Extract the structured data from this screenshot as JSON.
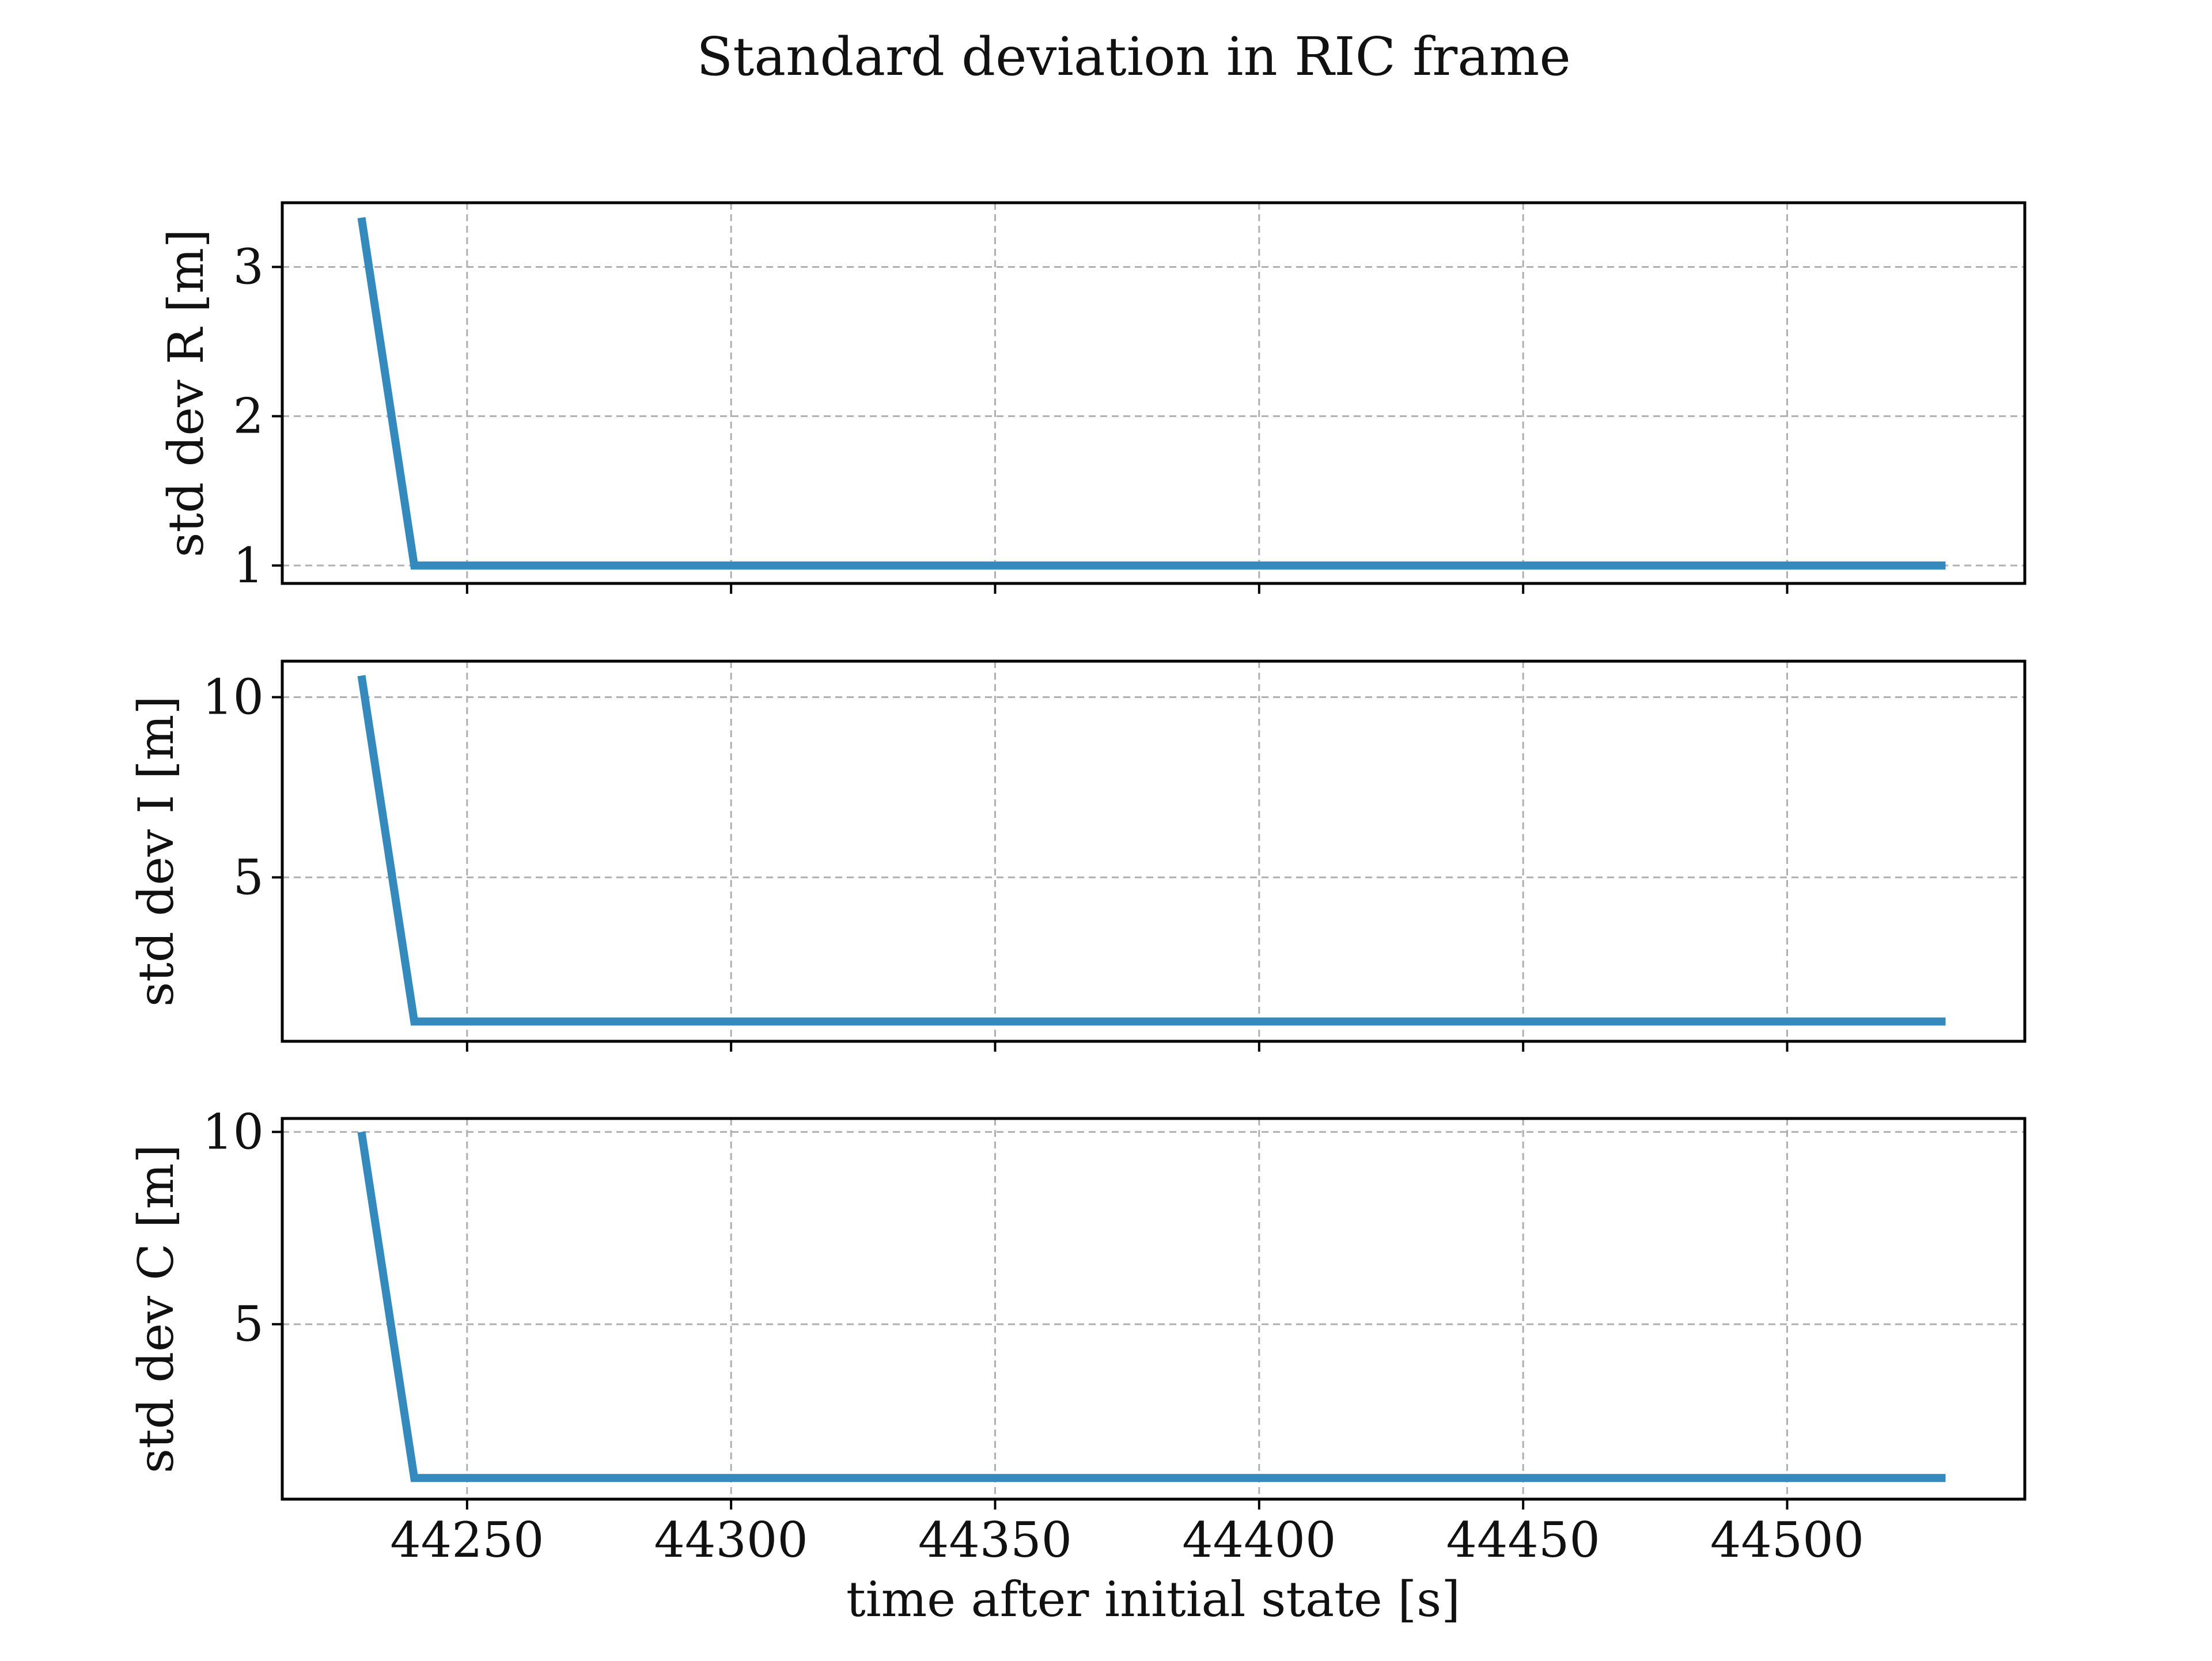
{
  "chart_data": {
    "type": "line",
    "title": "Standard deviation in RIC frame",
    "xlabel": "time after initial state [s]",
    "xlim": [
      44215,
      44545
    ],
    "xticks": [
      44250,
      44300,
      44350,
      44400,
      44450,
      44500
    ],
    "xtick_labels": [
      "44250",
      "44300",
      "44350",
      "44400",
      "44450",
      "44500"
    ],
    "grid": true,
    "line_color": "#348abd",
    "subplots": [
      {
        "ylabel": "std dev R [m]",
        "ylim": [
          0.88,
          3.43
        ],
        "yticks": [
          1,
          2,
          3
        ],
        "ytick_labels": [
          "1",
          "2",
          "3"
        ],
        "x": [
          44230,
          44240,
          44530
        ],
        "y": [
          3.33,
          1.0,
          1.0
        ]
      },
      {
        "ylabel": "std dev I [m]",
        "ylim": [
          0.45,
          11.0
        ],
        "yticks": [
          5,
          10
        ],
        "ytick_labels": [
          "5",
          "10"
        ],
        "x": [
          44230,
          44240,
          44530
        ],
        "y": [
          10.6,
          1.0,
          1.0
        ]
      },
      {
        "ylabel": "std dev C [m]",
        "ylim": [
          0.45,
          10.35
        ],
        "yticks": [
          5,
          10
        ],
        "ytick_labels": [
          "5",
          "10"
        ],
        "x": [
          44230,
          44240,
          44530
        ],
        "y": [
          10.0,
          1.0,
          1.0
        ]
      }
    ]
  }
}
